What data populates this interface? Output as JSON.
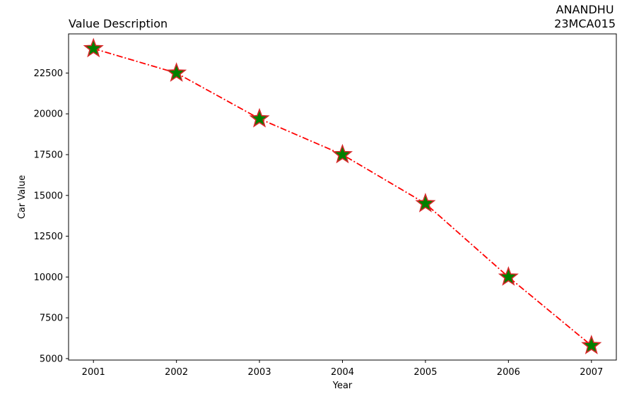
{
  "chart_data": {
    "type": "line",
    "title_left": "Value Description",
    "title_right_line1": "ANANDHU",
    "title_right_line2": "23MCA015",
    "xlabel": "Year",
    "ylabel": "Car Value",
    "x": [
      2001,
      2002,
      2003,
      2004,
      2005,
      2006,
      2007
    ],
    "series": [
      {
        "values": [
          24000,
          22500,
          19700,
          17500,
          14500,
          10000,
          5800
        ]
      }
    ],
    "xlim": [
      2000.7,
      2007.3
    ],
    "ylim": [
      4910,
      24900
    ],
    "xticks": [
      "2001",
      "2002",
      "2003",
      "2004",
      "2005",
      "2006",
      "2007"
    ],
    "yticks": [
      5000,
      7500,
      10000,
      12500,
      15000,
      17500,
      20000,
      22500
    ],
    "ytick_labels": [
      "5000",
      "7500",
      "10000",
      "12500",
      "15000",
      "17500",
      "20000",
      "22500"
    ],
    "line_color": "#ff0000",
    "line_style": "dash-dot",
    "marker": "star",
    "marker_fill": "#008000",
    "marker_edge": "#d62728",
    "grid": false
  }
}
